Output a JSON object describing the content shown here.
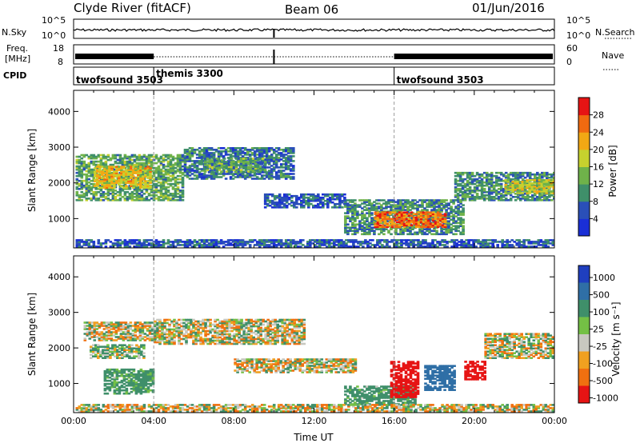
{
  "header": {
    "station": "Clyde River (fitACF)",
    "beam": "Beam 06",
    "date": "01/Jun/2016"
  },
  "noise_panel": {
    "left_label": "N.Sky",
    "right_label": "N.Search",
    "left_ticks": [
      "10^5",
      "10^0"
    ],
    "right_ticks": [
      "10^5",
      "10^0"
    ]
  },
  "freq_panel": {
    "left_label_line1": "Freq.",
    "left_label_line2": "[MHz]",
    "right_label": "Nave",
    "left_ticks": [
      "18",
      "8"
    ],
    "right_ticks": [
      "60",
      "0"
    ]
  },
  "cpid_panel": {
    "label": "CPID",
    "modes": [
      {
        "name": "twofsound 3503",
        "start_hour": 0
      },
      {
        "name": "themis 3300",
        "start_hour": 4
      },
      {
        "name": "twofsound 3503",
        "start_hour": 16
      }
    ]
  },
  "axes": {
    "ylabel": "Slant Range [km]",
    "xlabel": "Time UT",
    "x_ticks": [
      "00:00",
      "04:00",
      "08:00",
      "12:00",
      "16:00",
      "20:00",
      "00:00"
    ],
    "x_range_hours": [
      0,
      24
    ],
    "y_range_km": [
      180,
      4590
    ],
    "y_ticks": [
      "1000",
      "2000",
      "3000",
      "4000"
    ],
    "y_tick_values": [
      1000,
      2000,
      3000,
      4000
    ]
  },
  "power_colorbar": {
    "label": "Power [dB]",
    "ticks": [
      "4",
      "8",
      "12",
      "16",
      "20",
      "24",
      "28"
    ],
    "tick_values": [
      4,
      8,
      12,
      16,
      20,
      24,
      28
    ],
    "range": [
      0,
      32
    ],
    "colors": [
      "#1a2fd6",
      "#2a4fb8",
      "#3f8f6a",
      "#6fb24a",
      "#c6d12e",
      "#f2a814",
      "#f06a10",
      "#e61414"
    ]
  },
  "velocity_colorbar": {
    "label": "Velocity [m s⁻¹]",
    "ticks": [
      "1000",
      "500",
      "100",
      "25",
      "-25",
      "-100",
      "-500",
      "-1000"
    ],
    "colors": [
      "#1f3fbf",
      "#2f6fa6",
      "#3f8f6a",
      "#74c045",
      "#c8c8c0",
      "#f0a020",
      "#f07010",
      "#e61414"
    ]
  },
  "chart_data": [
    {
      "type": "heatmap",
      "title": "Power [dB]",
      "xlabel": "Time UT",
      "ylabel": "Slant Range [km]",
      "x_unit": "hours UT",
      "y_unit": "km",
      "xlim": [
        0,
        24
      ],
      "ylim": [
        180,
        4590
      ],
      "regions": [
        {
          "t0": 0.1,
          "t1": 5.5,
          "r0": 1500,
          "r1": 2800,
          "level": 12
        },
        {
          "t0": 1.0,
          "t1": 3.8,
          "r0": 1850,
          "r1": 2450,
          "level": 20
        },
        {
          "t0": 5.5,
          "t1": 11.0,
          "r0": 2100,
          "r1": 3000,
          "level": 8
        },
        {
          "t0": 6.5,
          "t1": 9.5,
          "r0": 2300,
          "r1": 2700,
          "level": 12
        },
        {
          "t0": 9.5,
          "t1": 13.5,
          "r0": 1300,
          "r1": 1700,
          "level": 6
        },
        {
          "t0": 13.5,
          "t1": 19.5,
          "r0": 550,
          "r1": 1500,
          "level": 10
        },
        {
          "t0": 15.0,
          "t1": 18.5,
          "r0": 750,
          "r1": 1200,
          "level": 26
        },
        {
          "t0": 19.0,
          "t1": 24.0,
          "r0": 1500,
          "r1": 2300,
          "level": 10
        },
        {
          "t0": 21.5,
          "t1": 24.0,
          "r0": 1700,
          "r1": 2100,
          "level": 18
        },
        {
          "t0": 0.1,
          "t1": 24.0,
          "r0": 200,
          "r1": 420,
          "level": 6
        }
      ]
    },
    {
      "type": "heatmap",
      "title": "Velocity [m s⁻¹]",
      "xlabel": "Time UT",
      "ylabel": "Slant Range [km]",
      "x_unit": "hours UT",
      "y_unit": "km",
      "xlim": [
        0,
        24
      ],
      "ylim": [
        180,
        4590
      ],
      "regions": [
        {
          "t0": 0.5,
          "t1": 4.0,
          "r0": 2200,
          "r1": 2700,
          "velocity": 0
        },
        {
          "t0": 4.0,
          "t1": 11.5,
          "r0": 2100,
          "r1": 2800,
          "velocity": 0
        },
        {
          "t0": 0.8,
          "t1": 3.5,
          "r0": 1700,
          "r1": 2100,
          "velocity": 60
        },
        {
          "t0": 1.5,
          "t1": 4.0,
          "r0": 700,
          "r1": 1400,
          "velocity": 150
        },
        {
          "t0": 8.0,
          "t1": 14.0,
          "r0": 1300,
          "r1": 1700,
          "velocity": 0
        },
        {
          "t0": 13.5,
          "t1": 17.0,
          "r0": 400,
          "r1": 900,
          "velocity": 150
        },
        {
          "t0": 15.8,
          "t1": 17.2,
          "r0": 600,
          "r1": 1600,
          "velocity": -500
        },
        {
          "t0": 17.5,
          "t1": 19.0,
          "r0": 800,
          "r1": 1500,
          "velocity": 600
        },
        {
          "t0": 19.5,
          "t1": 20.5,
          "r0": 1100,
          "r1": 1600,
          "velocity": -500
        },
        {
          "t0": 20.5,
          "t1": 24.0,
          "r0": 1700,
          "r1": 2400,
          "velocity": 0
        },
        {
          "t0": 0.1,
          "t1": 24.0,
          "r0": 200,
          "r1": 400,
          "velocity": 0
        }
      ]
    }
  ]
}
